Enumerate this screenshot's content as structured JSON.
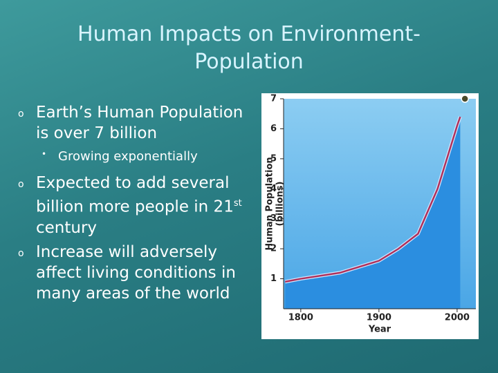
{
  "slide": {
    "title": "Human Impacts on Environment-Population",
    "bullets": [
      {
        "text": "Earth’s Human Population is over 7 billion",
        "sub": "Growing exponentially"
      },
      {
        "text": "Expected to add several billion more people in 21",
        "sup": "st",
        "tail": "century"
      },
      {
        "text": "Increase will adversely affect living conditions in many areas of the world"
      }
    ]
  },
  "chart_data": {
    "type": "line",
    "xlabel": "Year",
    "ylabel": "Human Population",
    "ylabel_unit": "(billions)",
    "x": [
      1780,
      1800,
      1850,
      1900,
      1925,
      1950,
      1975,
      2000,
      2004
    ],
    "series": [
      {
        "color": "#b0305a",
        "values": [
          0.9,
          1.0,
          1.2,
          1.6,
          2.0,
          2.5,
          4.0,
          6.1,
          6.4
        ]
      }
    ],
    "marker": {
      "x": 2010,
      "y": 7,
      "color": "#4a4a2a"
    },
    "xlim": [
      1778,
      2024
    ],
    "ylim": [
      0,
      7
    ],
    "xticks": [
      1800,
      1900,
      2000
    ],
    "yticks": [
      1,
      2,
      3,
      4,
      5,
      6,
      7
    ]
  }
}
